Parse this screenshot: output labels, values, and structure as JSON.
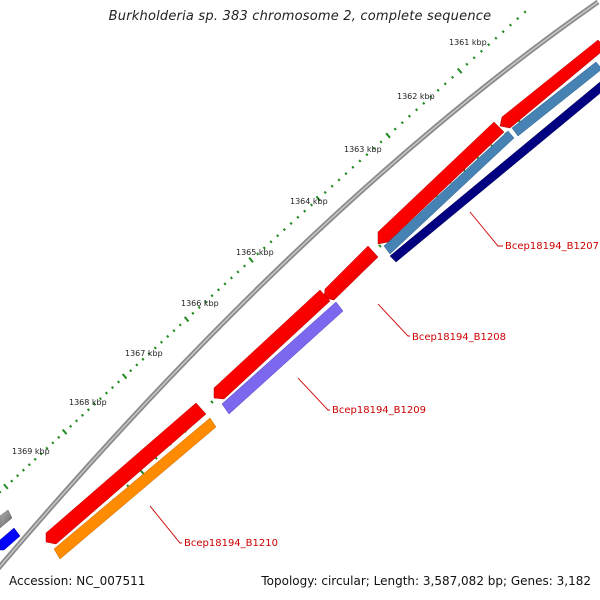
{
  "title": "Burkholderia sp. 383 chromosome 2, complete sequence",
  "footer": {
    "accession": "Accession: NC_007511",
    "topology": "Topology: circular; Length: 3,587,082 bp; Genes: 3,182"
  },
  "ticks": [
    "1361 kbp",
    "1362 kbp",
    "1363 kbp",
    "1364 kbp",
    "1365 kbp",
    "1366 kbp",
    "1367 kbp",
    "1368 kbp",
    "1369 kbp"
  ],
  "genes": [
    {
      "label": "Bcep18194_B1207",
      "color": "#ff0000"
    },
    {
      "label": "Bcep18194_B1208",
      "color": "#ff0000"
    },
    {
      "label": "Bcep18194_B1209",
      "color": "#ff0000"
    },
    {
      "label": "Bcep18194_B1210",
      "color": "#ff0000"
    }
  ],
  "colors": {
    "forward_cds": "#ff0000",
    "gene_b1207_track1": "#4682b4",
    "gene_b1207_track2": "#000080",
    "gene_b1209_track": "#7b68ee",
    "gene_b1210_track": "#ff8c00",
    "other_gene": "#0000ff",
    "backbone": "#808080",
    "tick_dots": "#228b22",
    "label_line": "#cc0000"
  }
}
